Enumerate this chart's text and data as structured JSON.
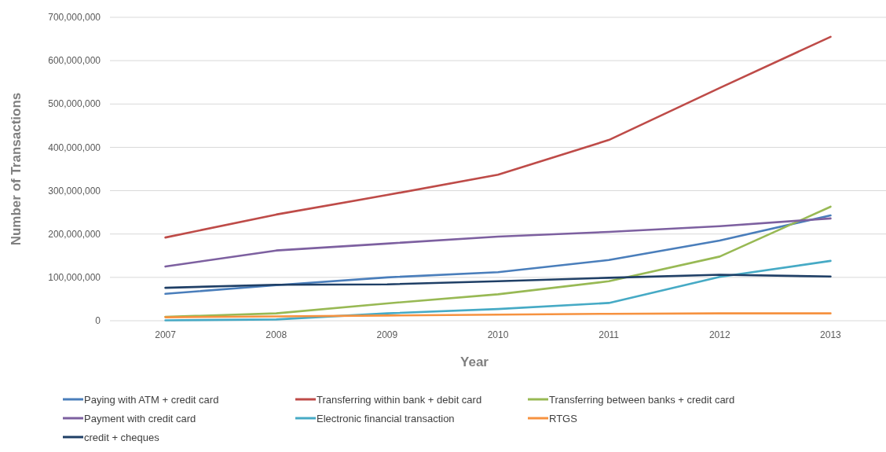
{
  "chart_data": {
    "type": "line",
    "xlabel": "Year",
    "ylabel": "Number of Transactions",
    "categories": [
      "2007",
      "2008",
      "2009",
      "2010",
      "2011",
      "2012",
      "2013"
    ],
    "ylim": [
      0,
      700000000
    ],
    "yticks": [
      {
        "value": 0,
        "label": "0"
      },
      {
        "value": 100000000,
        "label": "100,000,000"
      },
      {
        "value": 200000000,
        "label": "200,000,000"
      },
      {
        "value": 300000000,
        "label": "300,000,000"
      },
      {
        "value": 400000000,
        "label": "400,000,000"
      },
      {
        "value": 500000000,
        "label": "500,000,000"
      },
      {
        "value": 600000000,
        "label": "600,000,000"
      },
      {
        "value": 700000000,
        "label": "700,000,000"
      }
    ],
    "grid": "y",
    "legend": "bottom",
    "marker": "none",
    "line_style": "solid",
    "series": [
      {
        "name": "Paying with ATM + credit card",
        "color": "#4a7ebb",
        "values": [
          62000000,
          82000000,
          100000000,
          112000000,
          140000000,
          185000000,
          243000000
        ]
      },
      {
        "name": "Transferring within bank + debit card",
        "color": "#be4b48",
        "values": [
          192000000,
          245000000,
          290000000,
          337000000,
          417000000,
          537000000,
          655000000
        ]
      },
      {
        "name": "Transferring between banks + credit card",
        "color": "#98b954",
        "values": [
          9000000,
          17000000,
          40000000,
          61000000,
          91000000,
          148000000,
          263000000
        ]
      },
      {
        "name": "Payment with credit card",
        "color": "#7d60a0",
        "values": [
          125000000,
          162000000,
          178000000,
          194000000,
          205000000,
          218000000,
          236000000
        ]
      },
      {
        "name": "Electronic financial transaction",
        "color": "#46aac5",
        "values": [
          1000000,
          3000000,
          17000000,
          27000000,
          41000000,
          101000000,
          138000000
        ]
      },
      {
        "name": "RTGS",
        "color": "#f69240",
        "values": [
          8000000,
          10000000,
          12000000,
          14000000,
          16000000,
          17000000,
          17000000
        ]
      },
      {
        "name": "credit + cheques",
        "color": "#1f3f66",
        "values": [
          76000000,
          83000000,
          84000000,
          91000000,
          99000000,
          106000000,
          102000000
        ]
      }
    ]
  }
}
